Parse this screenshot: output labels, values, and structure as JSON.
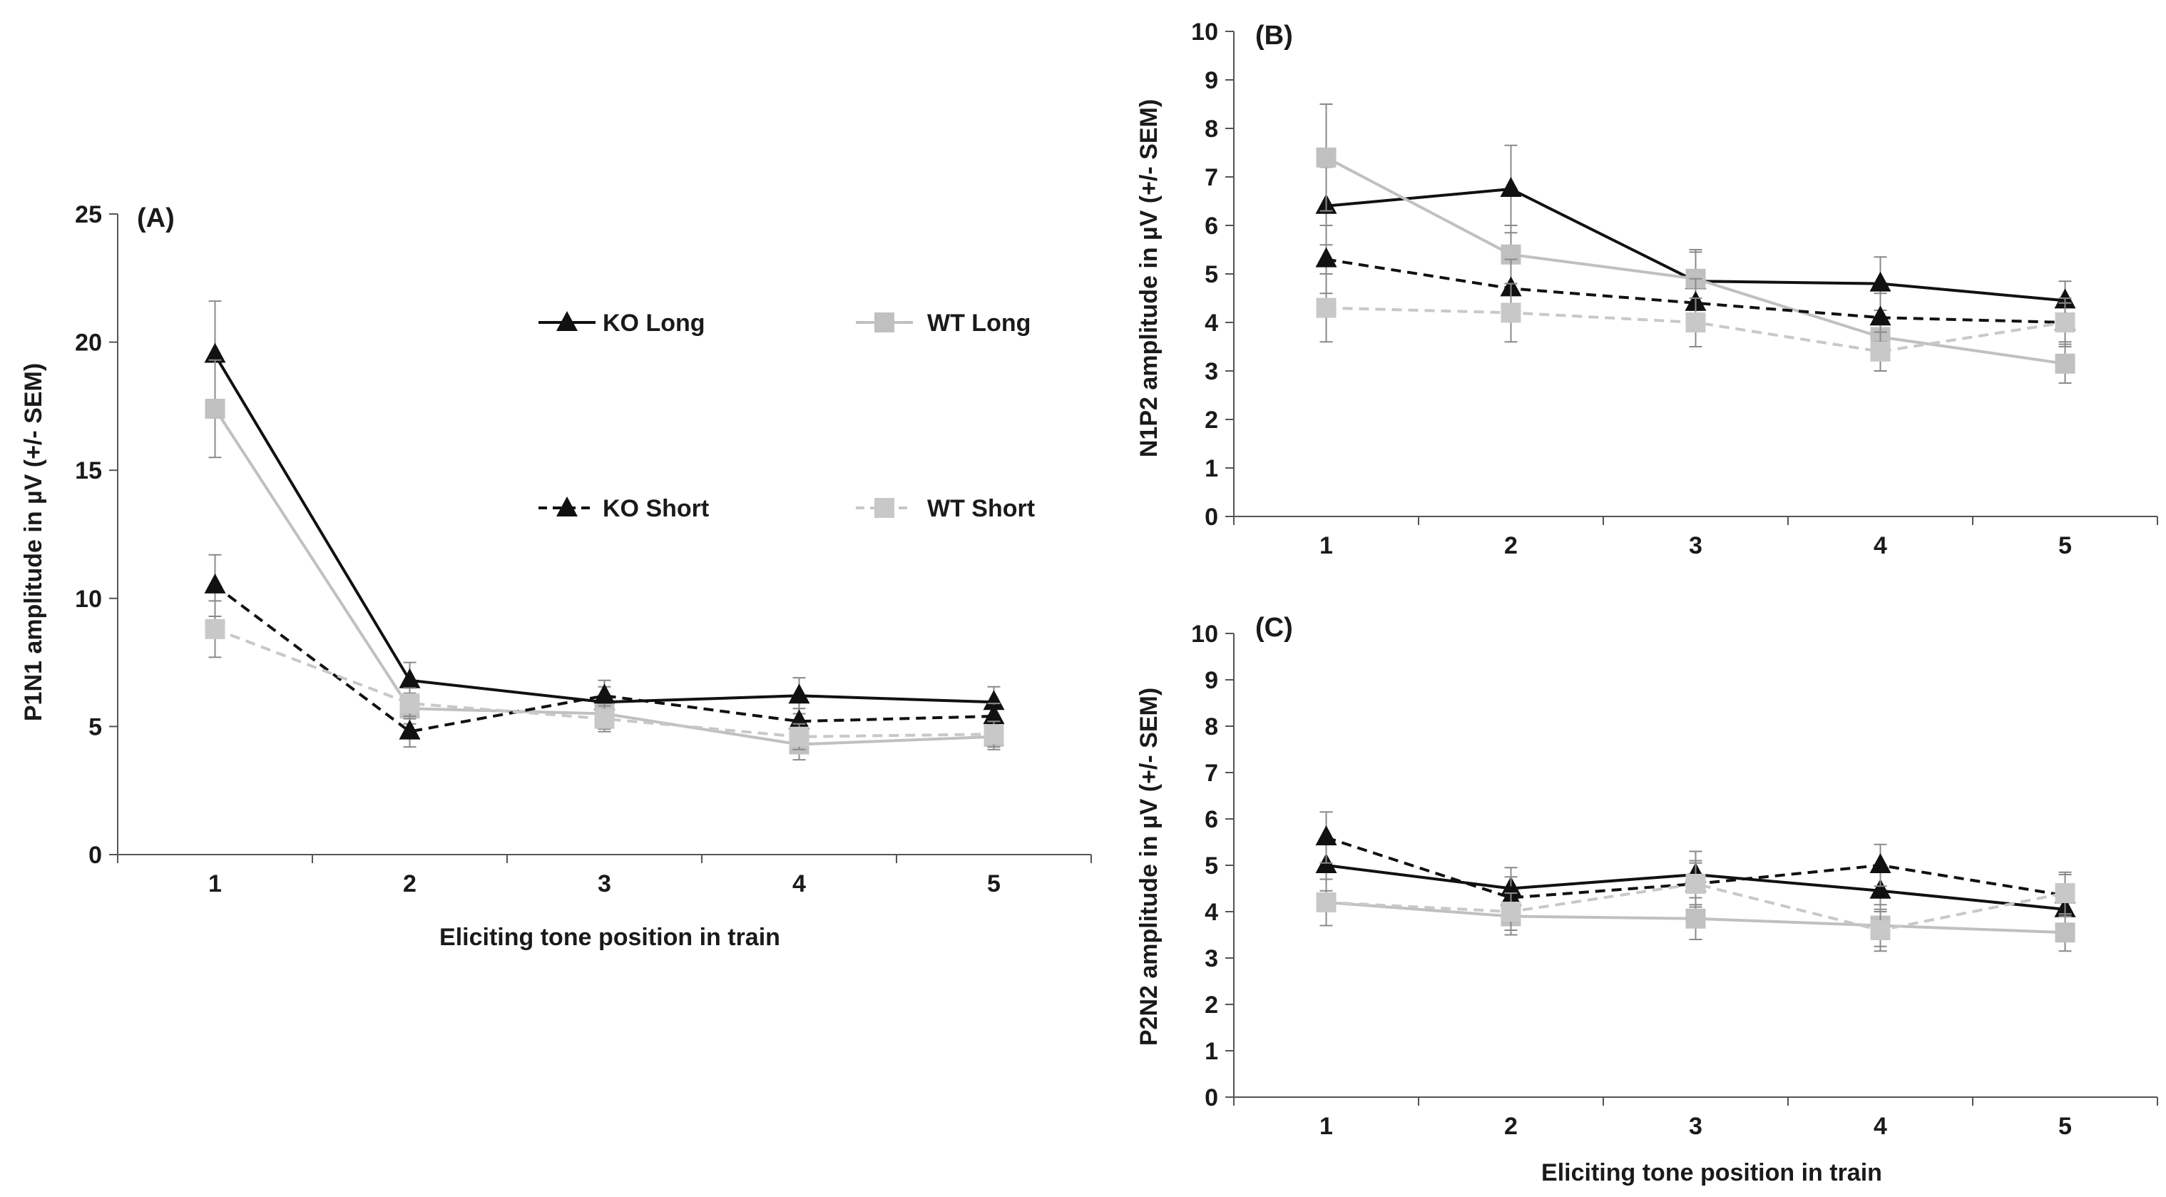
{
  "series_styles": {
    "KO Long": {
      "color": "#111111",
      "dash": "solid",
      "marker": "triangle"
    },
    "WT Long": {
      "color": "#c0c0c0",
      "dash": "solid",
      "marker": "square"
    },
    "KO Short": {
      "color": "#111111",
      "dash": "dashed",
      "marker": "triangle"
    },
    "WT Short": {
      "color": "#c8c8c8",
      "dash": "dashed",
      "marker": "square"
    }
  },
  "legend": {
    "ko_long": "KO Long",
    "wt_long": "WT Long",
    "ko_short": "KO Short",
    "wt_short": "WT Short"
  },
  "chart_data": [
    {
      "id": "A",
      "type": "line",
      "panel_label": "(A)",
      "title": "",
      "xlabel": "Eliciting tone position in train",
      "ylabel": "P1N1 amplitude in µV (+/- SEM)",
      "categories": [
        "1",
        "2",
        "3",
        "4",
        "5"
      ],
      "ylim": [
        0,
        25
      ],
      "yticks": [
        "0",
        "5",
        "10",
        "15",
        "20",
        "25"
      ],
      "ytick_values": [
        0,
        5,
        10,
        15,
        20,
        25
      ],
      "grid": false,
      "legend_position": "inside-top",
      "series": [
        {
          "name": "KO Long",
          "values": [
            19.5,
            6.8,
            5.95,
            6.2,
            5.95
          ],
          "err": [
            2.1,
            0.7,
            0.6,
            0.7,
            0.6
          ]
        },
        {
          "name": "WT Long",
          "values": [
            17.4,
            5.7,
            5.5,
            4.3,
            4.6
          ],
          "err": [
            1.9,
            0.6,
            0.6,
            0.6,
            0.5
          ]
        },
        {
          "name": "KO Short",
          "values": [
            10.5,
            4.8,
            6.2,
            5.2,
            5.4
          ],
          "err": [
            1.2,
            0.6,
            0.6,
            0.5,
            0.5
          ]
        },
        {
          "name": "WT Short",
          "values": [
            8.8,
            5.9,
            5.3,
            4.6,
            4.7
          ],
          "err": [
            1.1,
            0.6,
            0.5,
            0.5,
            0.5
          ]
        }
      ]
    },
    {
      "id": "B",
      "type": "line",
      "panel_label": "(B)",
      "title": "",
      "xlabel": "",
      "ylabel": "N1P2 amplitude in µV (+/- SEM)",
      "categories": [
        "1",
        "2",
        "3",
        "4",
        "5"
      ],
      "ylim": [
        0,
        10
      ],
      "yticks": [
        "0",
        "1",
        "2",
        "3",
        "4",
        "5",
        "6",
        "7",
        "8",
        "9",
        "10"
      ],
      "ytick_values": [
        0,
        1,
        2,
        3,
        4,
        5,
        6,
        7,
        8,
        9,
        10
      ],
      "grid": false,
      "series": [
        {
          "name": "KO Long",
          "values": [
            6.4,
            6.75,
            4.85,
            4.8,
            4.45
          ],
          "err": [
            0.8,
            0.9,
            0.6,
            0.55,
            0.4
          ]
        },
        {
          "name": "WT Long",
          "values": [
            7.4,
            5.4,
            4.9,
            3.7,
            3.15
          ],
          "err": [
            1.1,
            0.6,
            0.6,
            0.4,
            0.4
          ]
        },
        {
          "name": "KO Short",
          "values": [
            5.3,
            4.7,
            4.4,
            4.1,
            4.0
          ],
          "err": [
            0.7,
            0.6,
            0.5,
            0.5,
            0.5
          ]
        },
        {
          "name": "WT Short",
          "values": [
            4.3,
            4.2,
            4.0,
            3.4,
            4.0
          ],
          "err": [
            0.7,
            0.6,
            0.5,
            0.4,
            0.4
          ]
        }
      ]
    },
    {
      "id": "C",
      "type": "line",
      "panel_label": "(C)",
      "title": "",
      "xlabel": "Eliciting tone position in train",
      "ylabel": "P2N2 amplitude  in µV (+/- SEM)",
      "categories": [
        "1",
        "2",
        "3",
        "4",
        "5"
      ],
      "ylim": [
        0,
        10
      ],
      "yticks": [
        "0",
        "1",
        "2",
        "3",
        "4",
        "5",
        "6",
        "7",
        "8",
        "9",
        "10"
      ],
      "ytick_values": [
        0,
        1,
        2,
        3,
        4,
        5,
        6,
        7,
        8,
        9,
        10
      ],
      "grid": false,
      "series": [
        {
          "name": "KO Long",
          "values": [
            5.0,
            4.5,
            4.8,
            4.45,
            4.05
          ],
          "err": [
            0.55,
            0.45,
            0.5,
            0.45,
            0.45
          ]
        },
        {
          "name": "WT Long",
          "values": [
            4.2,
            3.9,
            3.85,
            3.7,
            3.55
          ],
          "err": [
            0.5,
            0.4,
            0.45,
            0.45,
            0.4
          ]
        },
        {
          "name": "KO Short",
          "values": [
            5.6,
            4.3,
            4.6,
            5.0,
            4.35
          ],
          "err": [
            0.55,
            0.45,
            0.5,
            0.45,
            0.45
          ]
        },
        {
          "name": "WT Short",
          "values": [
            4.2,
            4.0,
            4.6,
            3.6,
            4.4
          ],
          "err": [
            0.5,
            0.4,
            0.45,
            0.45,
            0.45
          ]
        }
      ]
    }
  ]
}
